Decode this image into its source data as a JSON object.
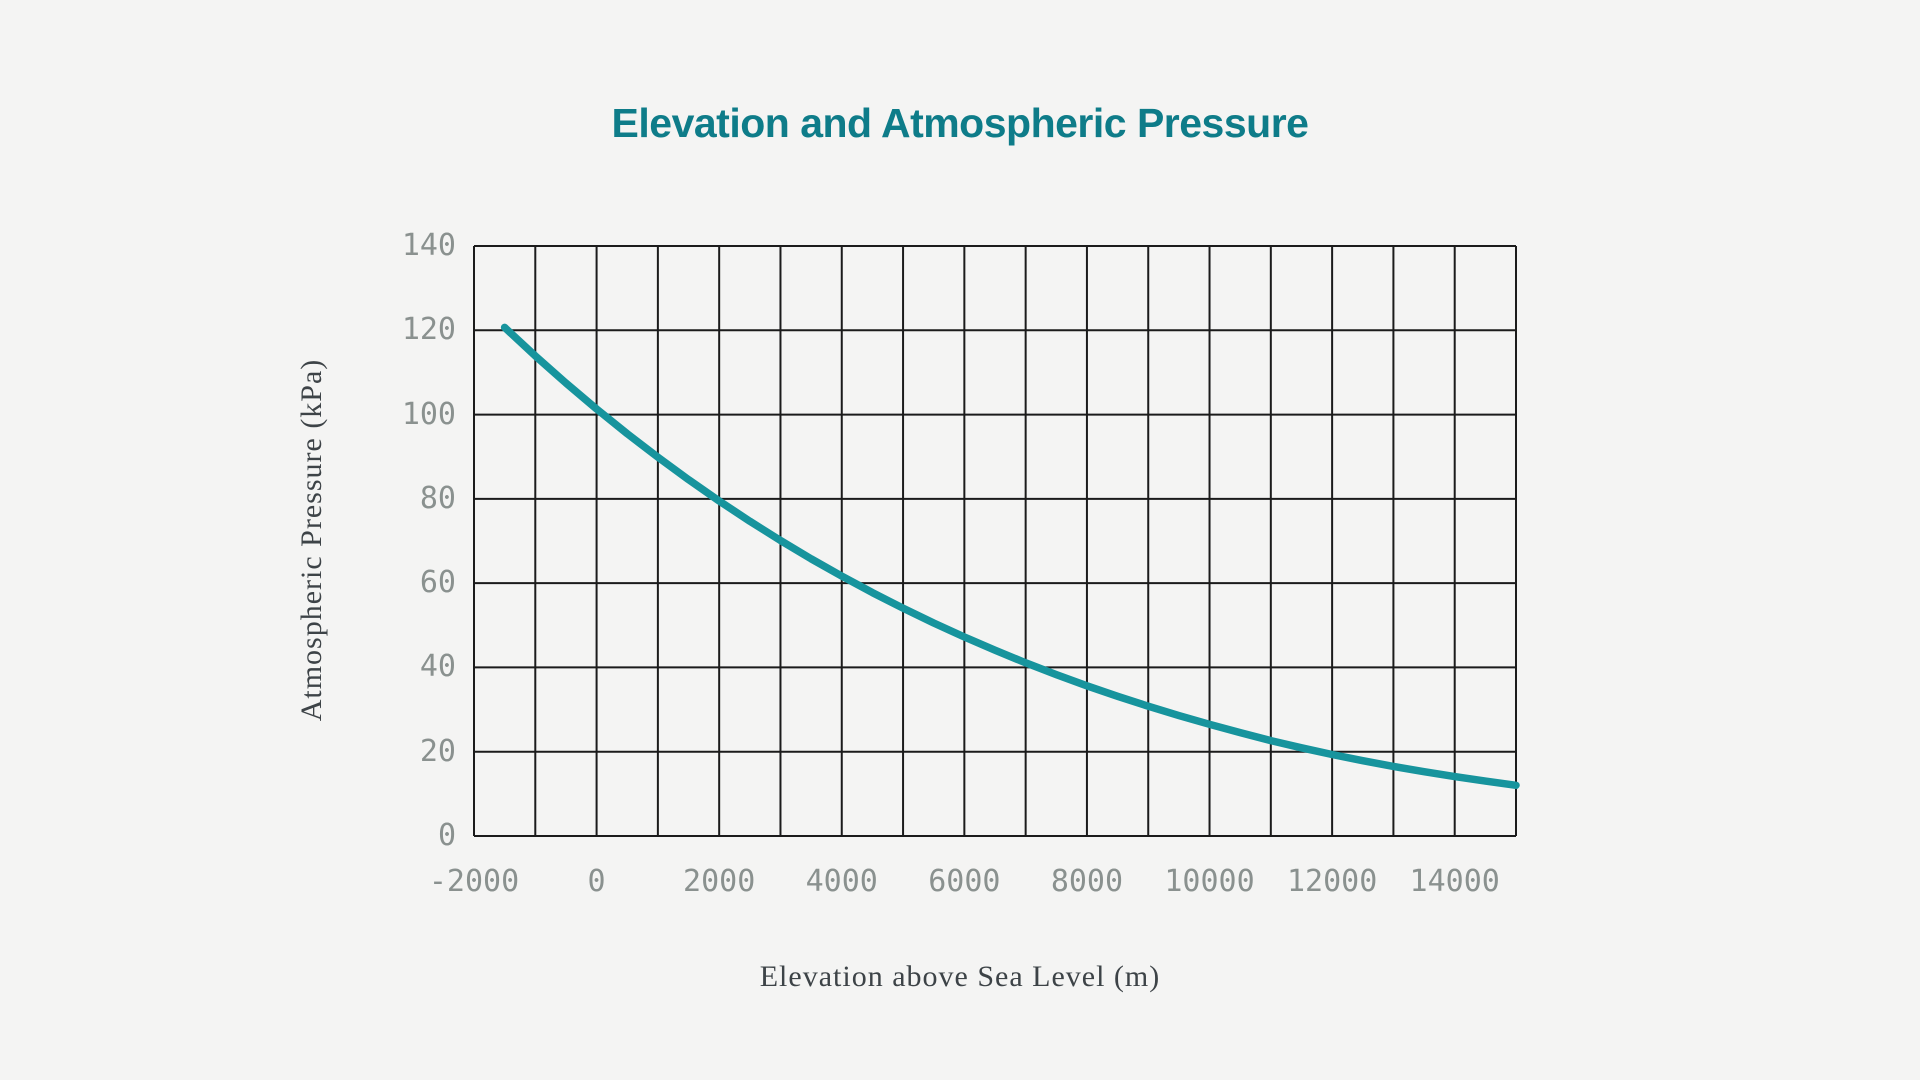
{
  "colors": {
    "background": "#f4f4f3",
    "title": "#0e7c89",
    "curve": "#17949d",
    "grid": "#1b1b1b",
    "tick_labels": "#8a918f",
    "axis_labels": "#3d4347"
  },
  "chart_data": {
    "type": "line",
    "title": "Elevation and Atmospheric Pressure",
    "xlabel": "Elevation above Sea Level (m)",
    "ylabel": "Atmospheric Pressure (kPa)",
    "xlim": [
      -2000,
      15000
    ],
    "ylim": [
      0,
      140
    ],
    "x_tick_labels": [
      "-2000",
      "0",
      "2000",
      "4000",
      "6000",
      "8000",
      "10000",
      "12000",
      "14000"
    ],
    "y_tick_labels": [
      "0",
      "20",
      "40",
      "60",
      "80",
      "100",
      "120",
      "140"
    ],
    "x_gridline_step": 1000,
    "y_gridline_step": 20,
    "grid": true,
    "legend": false,
    "series": [
      {
        "x": [
          -1500,
          -1000,
          -500,
          0,
          500,
          1000,
          1500,
          2000,
          2500,
          3000,
          3500,
          4000,
          4500,
          5000,
          5500,
          6000,
          6500,
          7000,
          7500,
          8000,
          8500,
          9000,
          9500,
          10000,
          10500,
          11000,
          11500,
          12000,
          12500,
          13000,
          13500,
          14000,
          14500,
          15000
        ],
        "y": [
          120.69,
          113.93,
          107.48,
          101.33,
          95.46,
          89.88,
          84.56,
          79.5,
          74.69,
          70.12,
          65.78,
          61.66,
          57.75,
          54.05,
          50.54,
          47.22,
          44.08,
          41.11,
          38.3,
          35.65,
          33.15,
          30.8,
          28.58,
          26.5,
          24.54,
          22.63,
          20.92,
          19.33,
          17.86,
          16.51,
          15.26,
          14.1,
          13.03,
          12.04
        ]
      }
    ]
  }
}
